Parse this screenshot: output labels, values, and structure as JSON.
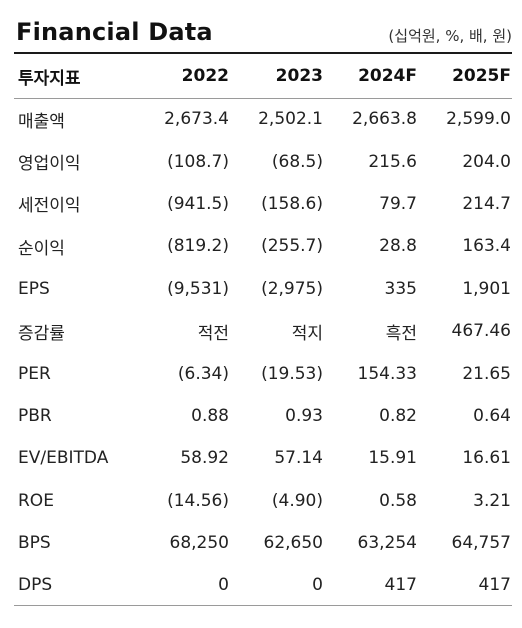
{
  "title": "Financial Data",
  "unit_note": "(십억원, %, 배, 원)",
  "table": {
    "headers": [
      "투자지표",
      "2022",
      "2023",
      "2024F",
      "2025F"
    ],
    "rows": [
      {
        "label": "매출액",
        "values": [
          "2,673.4",
          "2,502.1",
          "2,663.8",
          "2,599.0"
        ]
      },
      {
        "label": "영업이익",
        "values": [
          "(108.7)",
          "(68.5)",
          "215.6",
          "204.0"
        ]
      },
      {
        "label": "세전이익",
        "values": [
          "(941.5)",
          "(158.6)",
          "79.7",
          "214.7"
        ]
      },
      {
        "label": "순이익",
        "values": [
          "(819.2)",
          "(255.7)",
          "28.8",
          "163.4"
        ]
      },
      {
        "label": "EPS",
        "values": [
          "(9,531)",
          "(2,975)",
          "335",
          "1,901"
        ]
      },
      {
        "label": "증감률",
        "values": [
          "적전",
          "적지",
          "흑전",
          "467.46"
        ]
      },
      {
        "label": "PER",
        "values": [
          "(6.34)",
          "(19.53)",
          "154.33",
          "21.65"
        ]
      },
      {
        "label": "PBR",
        "values": [
          "0.88",
          "0.93",
          "0.82",
          "0.64"
        ]
      },
      {
        "label": "EV/EBITDA",
        "values": [
          "58.92",
          "57.14",
          "15.91",
          "16.61"
        ]
      },
      {
        "label": "ROE",
        "values": [
          "(14.56)",
          "(4.90)",
          "0.58",
          "3.21"
        ]
      },
      {
        "label": "BPS",
        "values": [
          "68,250",
          "62,650",
          "63,254",
          "64,757"
        ]
      },
      {
        "label": "DPS",
        "values": [
          "0",
          "0",
          "417",
          "417"
        ]
      }
    ]
  }
}
